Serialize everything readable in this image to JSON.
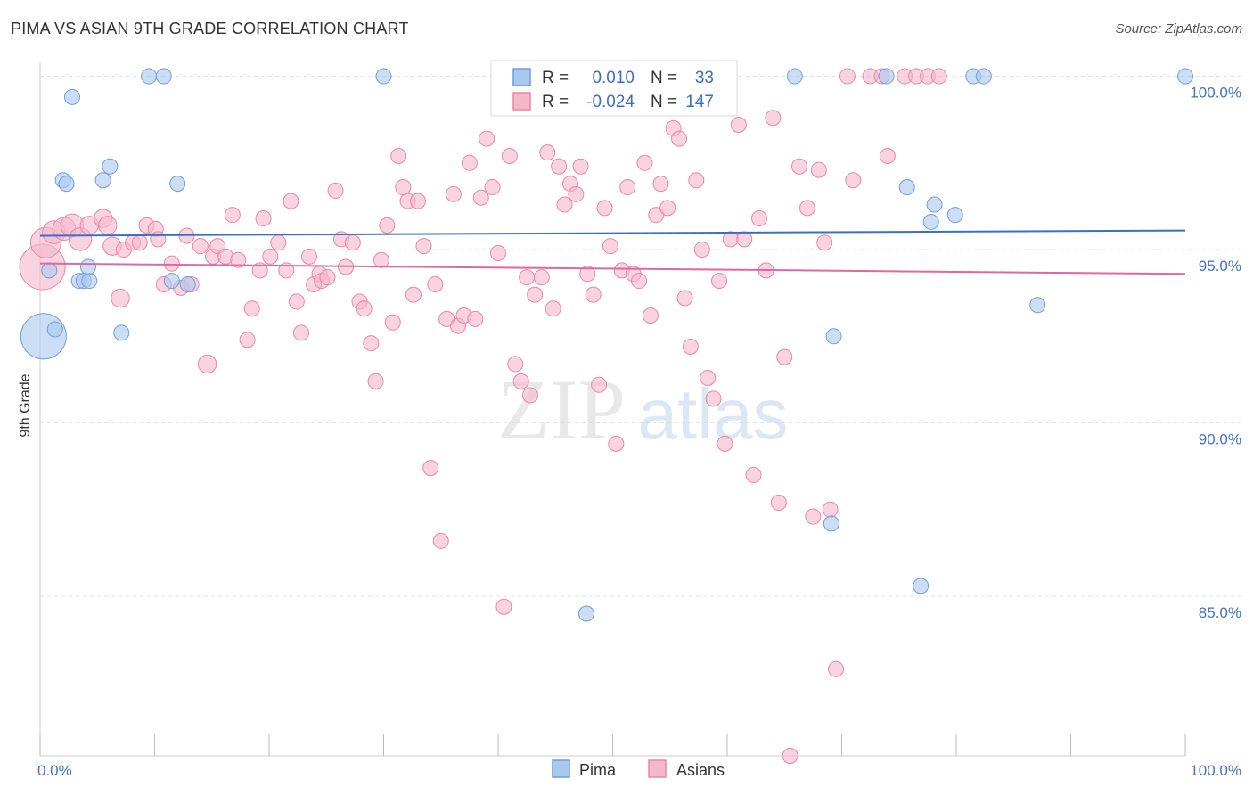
{
  "title": "PIMA VS ASIAN 9TH GRADE CORRELATION CHART",
  "source": "Source: ZipAtlas.com",
  "watermark": {
    "zip": "ZIP",
    "atlas": "atlas"
  },
  "chart_data": {
    "type": "scatter",
    "xlabel": "",
    "ylabel": "9th Grade",
    "xlim": [
      0,
      100
    ],
    "ylim": [
      80.4,
      100.4
    ],
    "x_tick_labels": [
      {
        "value": 0,
        "label": "0.0%"
      },
      {
        "value": 100,
        "label": "100.0%"
      }
    ],
    "y_tick_labels": [
      {
        "value": 100,
        "label": "100.0%"
      },
      {
        "value": 95,
        "label": "95.0%"
      },
      {
        "value": 90,
        "label": "90.0%"
      },
      {
        "value": 85,
        "label": "85.0%"
      }
    ],
    "legend": {
      "entries": [
        {
          "r_label": "R =",
          "r_value": "0.010",
          "n_label": "N =",
          "n_value": "33"
        },
        {
          "r_label": "R =",
          "r_value": "-0.024",
          "n_label": "N =",
          "n_value": "147"
        }
      ]
    },
    "series": [
      {
        "name": "Pima",
        "color": "#a8c8f0",
        "stroke": "#6f9ed8",
        "trend_color": "#3a6fc8",
        "trend": [
          [
            0,
            95.4
          ],
          [
            100,
            95.55
          ]
        ],
        "points": [
          [
            0.3,
            92.5,
            3
          ],
          [
            0.8,
            94.4,
            1
          ],
          [
            1.3,
            92.7,
            1
          ],
          [
            2.0,
            97.0,
            1
          ],
          [
            2.3,
            96.9,
            1
          ],
          [
            2.8,
            99.4,
            1
          ],
          [
            3.4,
            94.1,
            1
          ],
          [
            3.8,
            94.1,
            1
          ],
          [
            4.3,
            94.1,
            1
          ],
          [
            4.2,
            94.5,
            1
          ],
          [
            5.5,
            97.0,
            1
          ],
          [
            6.1,
            97.4,
            1
          ],
          [
            7.1,
            92.6,
            1
          ],
          [
            9.5,
            100.0,
            1
          ],
          [
            10.8,
            100.0,
            1
          ],
          [
            12.0,
            96.9,
            1
          ],
          [
            12.9,
            94.0,
            1
          ],
          [
            11.5,
            94.1,
            1
          ],
          [
            30.0,
            100.0,
            1
          ],
          [
            47.7,
            84.5,
            1
          ],
          [
            65.9,
            100.0,
            1
          ],
          [
            69.3,
            92.5,
            1
          ],
          [
            69.1,
            87.1,
            1
          ],
          [
            73.9,
            100.0,
            1
          ],
          [
            75.7,
            96.8,
            1
          ],
          [
            76.9,
            85.3,
            1
          ],
          [
            77.8,
            95.8,
            1
          ],
          [
            78.1,
            96.3,
            1
          ],
          [
            79.9,
            96.0,
            1
          ],
          [
            81.5,
            100.0,
            1
          ],
          [
            82.4,
            100.0,
            1
          ],
          [
            87.1,
            93.4,
            1
          ],
          [
            100.0,
            100.0,
            1
          ]
        ]
      },
      {
        "name": "Asians",
        "color": "#f5b8cb",
        "stroke": "#e887a5",
        "trend_color": "#e0689a",
        "trend": [
          [
            0,
            94.6
          ],
          [
            100,
            94.3
          ]
        ],
        "points": [
          [
            0.2,
            94.5,
            3
          ],
          [
            0.5,
            95.2,
            2
          ],
          [
            1.2,
            95.5,
            1.5
          ],
          [
            2.1,
            95.6,
            1.5
          ],
          [
            2.8,
            95.7,
            1.5
          ],
          [
            3.5,
            95.3,
            1.5
          ],
          [
            4.3,
            95.7,
            1.2
          ],
          [
            5.5,
            95.9,
            1.2
          ],
          [
            5.9,
            95.7,
            1.2
          ],
          [
            6.3,
            95.1,
            1.2
          ],
          [
            7.0,
            93.6,
            1.2
          ],
          [
            7.3,
            95.0,
            1
          ],
          [
            8.1,
            95.2,
            1
          ],
          [
            8.7,
            95.2,
            1
          ],
          [
            9.3,
            95.7,
            1
          ],
          [
            10.1,
            95.6,
            1
          ],
          [
            10.3,
            95.3,
            1
          ],
          [
            10.8,
            94.0,
            1
          ],
          [
            11.5,
            94.6,
            1
          ],
          [
            12.3,
            93.9,
            1
          ],
          [
            12.8,
            95.4,
            1
          ],
          [
            13.2,
            94.0,
            1
          ],
          [
            14.0,
            95.1,
            1
          ],
          [
            14.6,
            91.7,
            1.2
          ],
          [
            15.1,
            94.8,
            1
          ],
          [
            15.5,
            95.1,
            1
          ],
          [
            16.2,
            94.8,
            1
          ],
          [
            16.8,
            96.0,
            1
          ],
          [
            17.3,
            94.7,
            1
          ],
          [
            18.1,
            92.4,
            1
          ],
          [
            18.5,
            93.3,
            1
          ],
          [
            19.2,
            94.4,
            1
          ],
          [
            19.5,
            95.9,
            1
          ],
          [
            20.1,
            94.8,
            1
          ],
          [
            20.8,
            95.2,
            1
          ],
          [
            21.5,
            94.4,
            1
          ],
          [
            21.9,
            96.4,
            1
          ],
          [
            22.4,
            93.5,
            1
          ],
          [
            22.8,
            92.6,
            1
          ],
          [
            23.5,
            94.8,
            1
          ],
          [
            23.9,
            94.0,
            1
          ],
          [
            24.4,
            94.3,
            1
          ],
          [
            24.6,
            94.1,
            1
          ],
          [
            25.1,
            94.2,
            1
          ],
          [
            25.8,
            96.7,
            1
          ],
          [
            26.3,
            95.3,
            1
          ],
          [
            26.7,
            94.5,
            1
          ],
          [
            27.3,
            95.2,
            1
          ],
          [
            27.9,
            93.5,
            1
          ],
          [
            28.3,
            93.3,
            1
          ],
          [
            28.9,
            92.3,
            1
          ],
          [
            29.3,
            91.2,
            1
          ],
          [
            29.8,
            94.7,
            1
          ],
          [
            30.3,
            95.7,
            1
          ],
          [
            30.8,
            92.9,
            1
          ],
          [
            31.3,
            97.7,
            1
          ],
          [
            31.7,
            96.8,
            1
          ],
          [
            32.1,
            96.4,
            1
          ],
          [
            32.6,
            93.7,
            1
          ],
          [
            33.0,
            96.4,
            1
          ],
          [
            33.5,
            95.1,
            1
          ],
          [
            34.1,
            88.7,
            1
          ],
          [
            34.5,
            94.0,
            1
          ],
          [
            35.0,
            86.6,
            1
          ],
          [
            35.5,
            93.0,
            1
          ],
          [
            36.1,
            96.6,
            1
          ],
          [
            36.5,
            92.8,
            1
          ],
          [
            37.0,
            93.1,
            1
          ],
          [
            37.5,
            97.5,
            1
          ],
          [
            38.0,
            93.0,
            1
          ],
          [
            38.5,
            96.5,
            1
          ],
          [
            39.0,
            98.2,
            1
          ],
          [
            39.5,
            96.8,
            1
          ],
          [
            40.0,
            94.9,
            1
          ],
          [
            40.5,
            84.7,
            1
          ],
          [
            41.0,
            97.7,
            1
          ],
          [
            41.5,
            91.7,
            1
          ],
          [
            42.0,
            91.2,
            1
          ],
          [
            42.5,
            94.2,
            1
          ],
          [
            42.8,
            90.8,
            1
          ],
          [
            43.2,
            93.7,
            1
          ],
          [
            43.8,
            94.2,
            1
          ],
          [
            44.3,
            97.8,
            1
          ],
          [
            44.8,
            93.3,
            1
          ],
          [
            45.3,
            97.4,
            1
          ],
          [
            45.8,
            96.3,
            1
          ],
          [
            46.3,
            96.9,
            1
          ],
          [
            46.8,
            96.6,
            1
          ],
          [
            47.2,
            97.4,
            1
          ],
          [
            47.8,
            94.3,
            1
          ],
          [
            48.3,
            93.7,
            1
          ],
          [
            48.8,
            91.1,
            1
          ],
          [
            49.3,
            96.2,
            1
          ],
          [
            49.8,
            95.1,
            1
          ],
          [
            50.3,
            89.4,
            1
          ],
          [
            50.8,
            94.4,
            1
          ],
          [
            51.3,
            96.8,
            1
          ],
          [
            51.8,
            94.3,
            1
          ],
          [
            52.3,
            94.1,
            1
          ],
          [
            52.8,
            97.5,
            1
          ],
          [
            53.3,
            93.1,
            1
          ],
          [
            53.8,
            96.0,
            1
          ],
          [
            54.2,
            96.9,
            1
          ],
          [
            54.8,
            96.2,
            1
          ],
          [
            55.3,
            98.5,
            1
          ],
          [
            55.8,
            98.2,
            1
          ],
          [
            56.3,
            93.6,
            1
          ],
          [
            56.8,
            92.2,
            1
          ],
          [
            57.3,
            97.0,
            1
          ],
          [
            57.8,
            95.0,
            1
          ],
          [
            58.3,
            91.3,
            1
          ],
          [
            58.8,
            90.7,
            1
          ],
          [
            59.3,
            94.1,
            1
          ],
          [
            59.8,
            89.4,
            1
          ],
          [
            60.3,
            95.3,
            1
          ],
          [
            61.0,
            98.6,
            1
          ],
          [
            61.5,
            95.3,
            1
          ],
          [
            62.3,
            88.5,
            1
          ],
          [
            62.8,
            95.9,
            1
          ],
          [
            63.4,
            94.4,
            1
          ],
          [
            64.0,
            98.8,
            1
          ],
          [
            64.5,
            87.7,
            1
          ],
          [
            65.0,
            91.9,
            1
          ],
          [
            65.5,
            80.4,
            1
          ],
          [
            66.3,
            97.4,
            1
          ],
          [
            67.0,
            96.2,
            1
          ],
          [
            67.5,
            87.3,
            1
          ],
          [
            68.0,
            97.3,
            1
          ],
          [
            68.5,
            95.2,
            1
          ],
          [
            69.0,
            87.5,
            1
          ],
          [
            69.5,
            82.9,
            1
          ],
          [
            70.5,
            100.0,
            1
          ],
          [
            71.0,
            97.0,
            1
          ],
          [
            72.5,
            100.0,
            1
          ],
          [
            73.5,
            100.0,
            1
          ],
          [
            74.0,
            97.7,
            1
          ],
          [
            75.5,
            100.0,
            1
          ],
          [
            76.5,
            100.0,
            1
          ],
          [
            77.5,
            100.0,
            1
          ],
          [
            78.5,
            100.0,
            1
          ]
        ]
      }
    ],
    "bottom_legend": [
      "Pima",
      "Asians"
    ]
  }
}
